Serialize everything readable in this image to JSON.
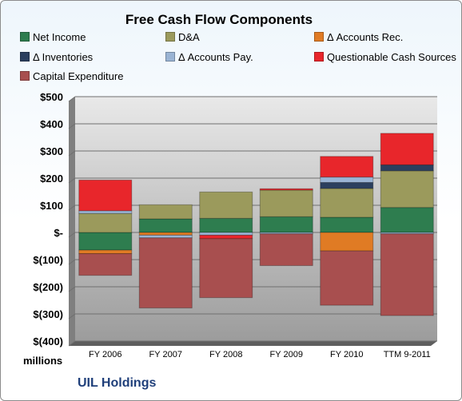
{
  "chart_data": {
    "type": "bar",
    "stacked": true,
    "title": "Free Cash Flow Components",
    "categories": [
      "FY 2006",
      "FY 2007",
      "FY 2008",
      "FY 2009",
      "FY 2010",
      "TTM 9-2011"
    ],
    "series": [
      {
        "name": "Net Income",
        "color": "#2e7d4f",
        "values": [
          -65,
          50,
          52,
          58,
          56,
          92
        ]
      },
      {
        "name": "D&A",
        "color": "#9b9a5c",
        "values": [
          70,
          52,
          97,
          98,
          106,
          135
        ]
      },
      {
        "name": "Δ Accounts Rec.",
        "color": "#e07b24",
        "values": [
          -13,
          -10,
          0,
          0,
          -68,
          0
        ]
      },
      {
        "name": "Δ Inventories",
        "color": "#2b3f5e",
        "values": [
          0,
          0,
          0,
          0,
          22,
          22
        ]
      },
      {
        "name": "Δ Accounts Pay.",
        "color": "#9ab4d4",
        "values": [
          10,
          -10,
          -10,
          -5,
          20,
          -5
        ]
      },
      {
        "name": "Questionable Cash Sources",
        "color": "#e8262b",
        "values": [
          113,
          0,
          -13,
          5,
          76,
          116
        ]
      },
      {
        "name": "Capital Expenditure",
        "color": "#a84f4f",
        "values": [
          -80,
          -258,
          -217,
          -117,
          -200,
          -301
        ]
      }
    ],
    "ylim": [
      -400,
      500
    ],
    "ytick_values": [
      500,
      400,
      300,
      200,
      100,
      0,
      -100,
      -200,
      -300,
      -400
    ],
    "ytick_labels": [
      "$500",
      "$400",
      "$300",
      "$200",
      "$100",
      "$-",
      "$(100)",
      "$(200)",
      "$(300)",
      "$(400)"
    ],
    "ylabel": "millions",
    "legend_position": "top",
    "grid": true
  },
  "footer": {
    "company": "UIL Holdings"
  }
}
